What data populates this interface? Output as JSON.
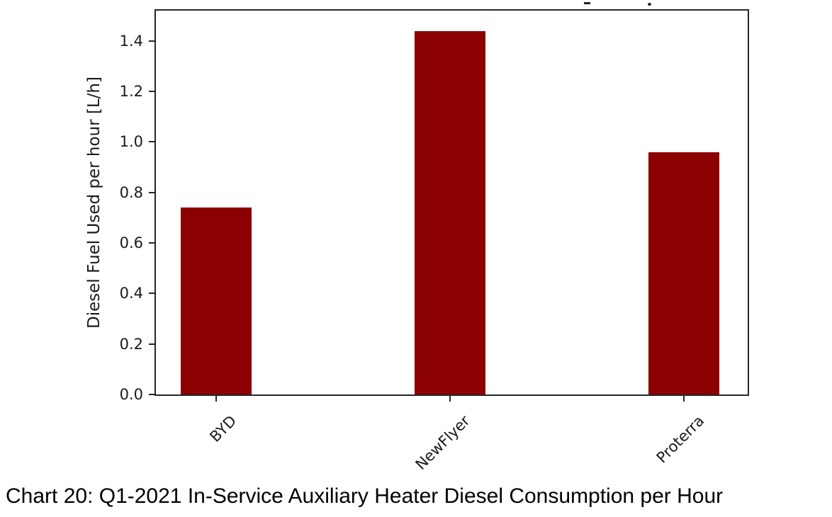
{
  "figure": {
    "caption": "Chart 20: Q1-2021 In-Service Auxiliary Heater Diesel Consumption per Hour"
  },
  "chart_data": {
    "type": "bar",
    "categories": [
      "BYD",
      "NewFlyer",
      "Proterra"
    ],
    "values": [
      0.74,
      1.44,
      0.96
    ],
    "title": "",
    "xlabel": "",
    "ylabel": "Diesel Fuel Used per hour [L/h]",
    "ytick_labels": [
      "0.0",
      "0.2",
      "0.4",
      "0.6",
      "0.8",
      "1.0",
      "1.2",
      "1.4"
    ],
    "ylim": [
      0,
      1.52
    ],
    "bar_color": "#8B0000",
    "axis_color": "#262626",
    "grid": false,
    "legend_position": "none",
    "x_tick_rotation_deg": 45
  }
}
